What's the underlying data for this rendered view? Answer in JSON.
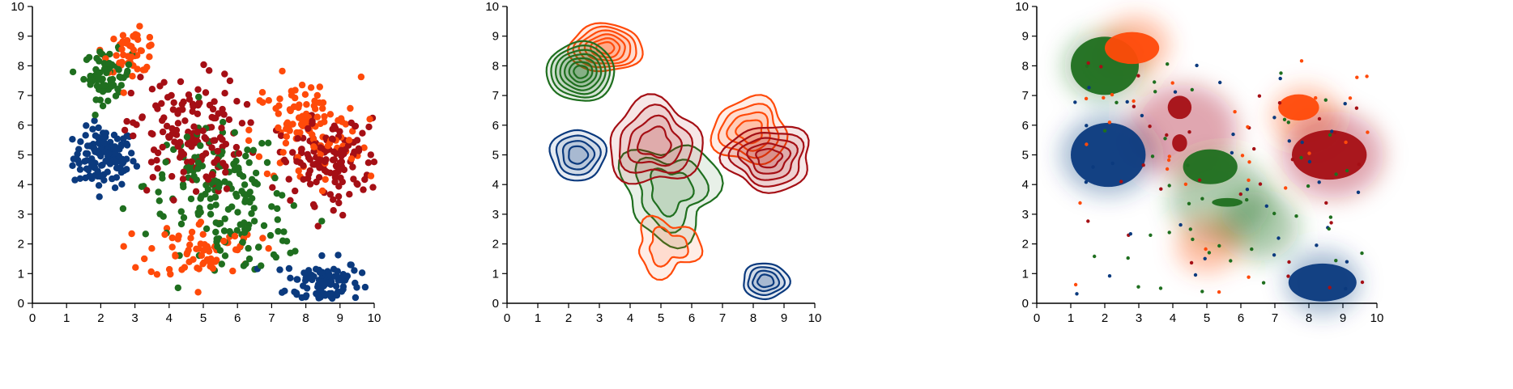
{
  "colors": {
    "blue": "#0b3a7e",
    "green": "#1f6f1f",
    "red": "#a50f15",
    "orange": "#ff4a0a"
  },
  "chart_data": [
    {
      "type": "scatter",
      "xlim": [
        0,
        10
      ],
      "ylim": [
        0,
        10
      ],
      "x_ticks": [
        "0",
        "1",
        "2",
        "3",
        "4",
        "5",
        "6",
        "7",
        "8",
        "9",
        "10"
      ],
      "y_ticks": [
        "0",
        "1",
        "2",
        "3",
        "4",
        "5",
        "6",
        "7",
        "8",
        "9",
        "10"
      ],
      "grid": false,
      "clusters": [
        {
          "color": "blue",
          "cx": 2.1,
          "cy": 4.9,
          "sx": 0.45,
          "sy": 0.5,
          "n": 120
        },
        {
          "color": "blue",
          "cx": 8.5,
          "cy": 0.7,
          "sx": 0.55,
          "sy": 0.4,
          "n": 110
        },
        {
          "color": "green",
          "cx": 2.2,
          "cy": 7.7,
          "sx": 0.35,
          "sy": 0.4,
          "n": 70
        },
        {
          "color": "green",
          "cx": 5.3,
          "cy": 4.0,
          "sx": 1.0,
          "sy": 0.9,
          "n": 120
        },
        {
          "color": "green",
          "cx": 6.3,
          "cy": 2.3,
          "sx": 0.9,
          "sy": 0.7,
          "n": 60
        },
        {
          "color": "orange",
          "cx": 2.9,
          "cy": 8.5,
          "sx": 0.4,
          "sy": 0.35,
          "n": 50
        },
        {
          "color": "orange",
          "cx": 8.0,
          "cy": 5.8,
          "sx": 0.8,
          "sy": 0.9,
          "n": 120
        },
        {
          "color": "orange",
          "cx": 5.0,
          "cy": 1.8,
          "sx": 0.8,
          "sy": 0.5,
          "n": 70
        },
        {
          "color": "red",
          "cx": 4.5,
          "cy": 5.7,
          "sx": 0.8,
          "sy": 1.0,
          "n": 150
        },
        {
          "color": "red",
          "cx": 8.7,
          "cy": 4.8,
          "sx": 0.75,
          "sy": 0.7,
          "n": 140
        }
      ]
    },
    {
      "type": "contour",
      "xlim": [
        0,
        10
      ],
      "ylim": [
        0,
        10
      ],
      "x_ticks": [
        "0",
        "1",
        "2",
        "3",
        "4",
        "5",
        "6",
        "7",
        "8",
        "9",
        "10"
      ],
      "y_ticks": [
        "0",
        "1",
        "2",
        "3",
        "4",
        "5",
        "6",
        "7",
        "8",
        "9",
        "10"
      ],
      "grid": false,
      "density_peaks": [
        {
          "color": "green",
          "x": 2.4,
          "y": 7.8
        },
        {
          "color": "orange",
          "x": 3.2,
          "y": 8.6
        },
        {
          "color": "blue",
          "x": 2.3,
          "y": 5.0
        },
        {
          "color": "red",
          "x": 4.8,
          "y": 5.3
        },
        {
          "color": "green",
          "x": 5.3,
          "y": 4.0
        },
        {
          "color": "orange",
          "x": 7.8,
          "y": 5.9
        },
        {
          "color": "red",
          "x": 8.5,
          "y": 5.0
        },
        {
          "color": "orange",
          "x": 5.1,
          "y": 1.8
        },
        {
          "color": "blue",
          "x": 8.3,
          "y": 0.7
        }
      ]
    },
    {
      "type": "heatmap",
      "xlim": [
        0,
        10
      ],
      "ylim": [
        0,
        10
      ],
      "x_ticks": [
        "0",
        "1",
        "2",
        "3",
        "4",
        "5",
        "6",
        "7",
        "8",
        "9",
        "10"
      ],
      "y_ticks": [
        "0",
        "1",
        "2",
        "3",
        "4",
        "5",
        "6",
        "7",
        "8",
        "9",
        "10"
      ],
      "grid": false,
      "regions": [
        {
          "color": "green",
          "x": 2.0,
          "y": 8.0
        },
        {
          "color": "orange",
          "x": 2.8,
          "y": 8.6
        },
        {
          "color": "blue",
          "x": 2.1,
          "y": 5.0
        },
        {
          "color": "red",
          "x": 4.2,
          "y": 6.3
        },
        {
          "color": "red",
          "x": 4.2,
          "y": 5.4
        },
        {
          "color": "green",
          "x": 5.1,
          "y": 4.6
        },
        {
          "color": "green",
          "x": 5.6,
          "y": 3.4
        },
        {
          "color": "orange",
          "x": 7.8,
          "y": 6.5
        },
        {
          "color": "red",
          "x": 8.6,
          "y": 5.0
        },
        {
          "color": "blue",
          "x": 8.4,
          "y": 0.6
        }
      ]
    }
  ]
}
